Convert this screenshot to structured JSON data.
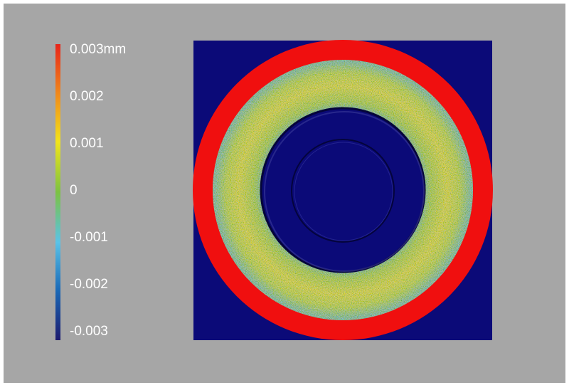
{
  "colorbar": {
    "lim": [
      -0.003,
      0.003
    ],
    "ticks": [
      {
        "value": 0.003,
        "label": "0.003mm"
      },
      0.002,
      0.001,
      0,
      -0.001,
      -0.002,
      -0.003
    ]
  }
}
